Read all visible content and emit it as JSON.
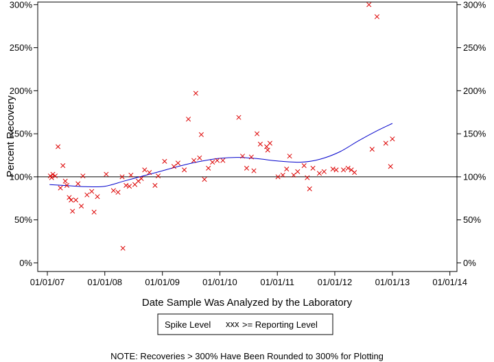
{
  "chart_data": {
    "type": "scatter",
    "xlabel": "Date Sample Was Analyzed by the Laboratory",
    "ylabel": "Percent Recovery",
    "x_ticks": [
      "01/01/07",
      "01/01/08",
      "01/01/09",
      "01/01/10",
      "01/01/11",
      "01/01/12",
      "01/01/13",
      "01/01/14"
    ],
    "y_ticks": [
      "0%",
      "50%",
      "100%",
      "150%",
      "200%",
      "250%",
      "300%"
    ],
    "ylim": [
      -10,
      303
    ],
    "xlim": [
      "2006-11-01",
      "2014-02-15"
    ],
    "reference_line": 100,
    "grid": false,
    "legend": {
      "position": "bottom-center",
      "box_title": "Spike Level",
      "marker_text": "xxx",
      "label": ">= Reporting Level"
    },
    "note": "NOTE: Recoveries > 300% Have Been Rounded to 300% for Plotting",
    "marker_color": "#dd0000",
    "trend_color": "#0000cc",
    "series": [
      {
        "name": ">= Reporting Level",
        "marker": "x",
        "points": [
          [
            "2007-01-20",
            101
          ],
          [
            "2007-01-28",
            99
          ],
          [
            "2007-02-05",
            103
          ],
          [
            "2007-02-20",
            101
          ],
          [
            "2007-03-10",
            135
          ],
          [
            "2007-03-25",
            87
          ],
          [
            "2007-04-10",
            113
          ],
          [
            "2007-04-25",
            95
          ],
          [
            "2007-05-05",
            90
          ],
          [
            "2007-05-20",
            76
          ],
          [
            "2007-06-01",
            73
          ],
          [
            "2007-06-10",
            60
          ],
          [
            "2007-07-01",
            73
          ],
          [
            "2007-07-15",
            92
          ],
          [
            "2007-08-05",
            66
          ],
          [
            "2007-08-15",
            101
          ],
          [
            "2007-09-10",
            79
          ],
          [
            "2007-10-10",
            83
          ],
          [
            "2007-10-25",
            59
          ],
          [
            "2007-11-15",
            77
          ],
          [
            "2008-01-10",
            103
          ],
          [
            "2008-02-25",
            84
          ],
          [
            "2008-03-25",
            82
          ],
          [
            "2008-04-20",
            100
          ],
          [
            "2008-04-25",
            17
          ],
          [
            "2008-05-15",
            90
          ],
          [
            "2008-06-05",
            89
          ],
          [
            "2008-06-15",
            102
          ],
          [
            "2008-07-10",
            91
          ],
          [
            "2008-08-01",
            95
          ],
          [
            "2008-08-20",
            98
          ],
          [
            "2008-09-10",
            108
          ],
          [
            "2008-10-10",
            105
          ],
          [
            "2008-11-15",
            90
          ],
          [
            "2008-12-05",
            101
          ],
          [
            "2009-01-15",
            118
          ],
          [
            "2009-03-15",
            112
          ],
          [
            "2009-04-10",
            116
          ],
          [
            "2009-05-20",
            108
          ],
          [
            "2009-06-15",
            167
          ],
          [
            "2009-07-20",
            119
          ],
          [
            "2009-08-01",
            197
          ],
          [
            "2009-08-25",
            122
          ],
          [
            "2009-09-05",
            149
          ],
          [
            "2009-09-25",
            97
          ],
          [
            "2009-10-20",
            110
          ],
          [
            "2009-11-15",
            117
          ],
          [
            "2009-12-15",
            119
          ],
          [
            "2010-01-20",
            119
          ],
          [
            "2010-05-01",
            169
          ],
          [
            "2010-05-25",
            124
          ],
          [
            "2010-06-20",
            110
          ],
          [
            "2010-07-20",
            123
          ],
          [
            "2010-08-05",
            107
          ],
          [
            "2010-08-25",
            150
          ],
          [
            "2010-09-15",
            138
          ],
          [
            "2010-10-25",
            135
          ],
          [
            "2010-11-01",
            131
          ],
          [
            "2010-11-15",
            139
          ],
          [
            "2011-01-05",
            100
          ],
          [
            "2011-02-05",
            102
          ],
          [
            "2011-03-01",
            109
          ],
          [
            "2011-03-20",
            124
          ],
          [
            "2011-04-15",
            102
          ],
          [
            "2011-05-10",
            106
          ],
          [
            "2011-06-20",
            113
          ],
          [
            "2011-07-10",
            99
          ],
          [
            "2011-07-25",
            86
          ],
          [
            "2011-08-15",
            110
          ],
          [
            "2011-09-25",
            104
          ],
          [
            "2011-10-25",
            106
          ],
          [
            "2011-12-20",
            109
          ],
          [
            "2012-01-10",
            108
          ],
          [
            "2012-02-25",
            108
          ],
          [
            "2012-03-25",
            110
          ],
          [
            "2012-04-15",
            108
          ],
          [
            "2012-05-05",
            105
          ],
          [
            "2012-08-05",
            300
          ],
          [
            "2012-08-25",
            132
          ],
          [
            "2012-09-25",
            286
          ],
          [
            "2012-11-20",
            139
          ],
          [
            "2012-12-20",
            112
          ],
          [
            "2013-01-01",
            144
          ]
        ]
      }
    ],
    "trend": [
      [
        "2007-01-15",
        91
      ],
      [
        "2007-06-01",
        89.5
      ],
      [
        "2007-09-01",
        88.5
      ],
      [
        "2008-01-01",
        89
      ],
      [
        "2008-05-01",
        95
      ],
      [
        "2008-09-01",
        101
      ],
      [
        "2009-01-01",
        107
      ],
      [
        "2009-05-01",
        113
      ],
      [
        "2009-09-01",
        118
      ],
      [
        "2010-01-01",
        121.5
      ],
      [
        "2010-05-01",
        122.5
      ],
      [
        "2010-09-01",
        121
      ],
      [
        "2011-01-01",
        118.5
      ],
      [
        "2011-06-01",
        117
      ],
      [
        "2011-10-01",
        120.5
      ],
      [
        "2012-02-01",
        129
      ],
      [
        "2012-06-01",
        142
      ],
      [
        "2012-10-01",
        154
      ],
      [
        "2013-01-01",
        162
      ]
    ]
  }
}
